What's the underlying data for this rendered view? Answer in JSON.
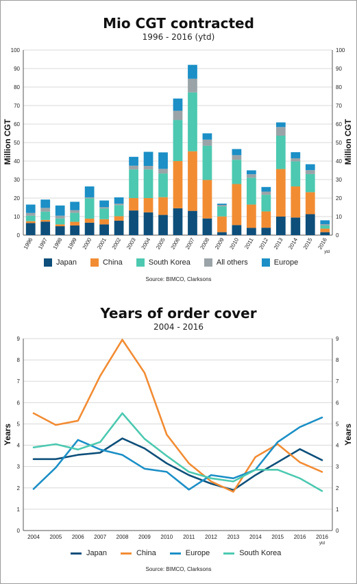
{
  "chart_data": [
    {
      "type": "bar",
      "stacked": true,
      "title": "Mio CGT contracted",
      "subtitle": "1996 - 2016 (ytd)",
      "ylabel": "Million CGT",
      "ylabel_right": "Million CGT",
      "ylim": [
        0,
        100
      ],
      "yticks": [
        0,
        10,
        20,
        30,
        40,
        50,
        60,
        70,
        80,
        90,
        100
      ],
      "categories": [
        "1996",
        "1997",
        "1998",
        "1999",
        "2000",
        "2001",
        "2002",
        "2003",
        "2004",
        "2005",
        "2006",
        "2007",
        "2008",
        "2009",
        "2010",
        "2011",
        "2012",
        "2013",
        "2014",
        "2015",
        "2016"
      ],
      "last_category_note": "ytd",
      "series": [
        {
          "name": "Japan",
          "color": "#0d4f7a",
          "values": [
            6.5,
            7.3,
            4.8,
            5.2,
            6.7,
            5.8,
            7.8,
            13.3,
            12.3,
            10.9,
            14.5,
            13.1,
            9.0,
            1.6,
            5.4,
            3.9,
            4.0,
            10.0,
            9.5,
            11.3,
            1.6
          ]
        },
        {
          "name": "China",
          "color": "#f28c33",
          "values": [
            1.0,
            0.9,
            1.0,
            2.0,
            2.2,
            2.8,
            2.4,
            6.7,
            7.7,
            9.6,
            25.5,
            32.2,
            20.8,
            8.5,
            22.2,
            12.6,
            8.8,
            25.7,
            16.8,
            11.9,
            1.9
          ]
        },
        {
          "name": "South Korea",
          "color": "#4cc9b0",
          "values": [
            3.0,
            4.5,
            3.2,
            4.8,
            11.0,
            5.8,
            6.0,
            15.5,
            15.5,
            12.8,
            22.2,
            31.8,
            18.5,
            5.4,
            13.1,
            14.5,
            9.0,
            18.0,
            13.5,
            9.8,
            1.7
          ]
        },
        {
          "name": "All others",
          "color": "#9aa4a8",
          "values": [
            1.5,
            2.0,
            1.5,
            1.5,
            0.5,
            0.7,
            0.8,
            2.0,
            1.9,
            2.5,
            5.0,
            7.4,
            3.3,
            0.8,
            2.5,
            1.9,
            1.7,
            4.7,
            1.7,
            2.1,
            0.7
          ]
        },
        {
          "name": "Europe",
          "color": "#1b8fc6",
          "values": [
            4.5,
            4.5,
            5.5,
            4.5,
            5.9,
            3.6,
            3.4,
            4.8,
            7.6,
            8.9,
            6.6,
            7.5,
            3.4,
            0.7,
            3.3,
            2.1,
            2.5,
            2.5,
            3.3,
            3.2,
            2.1
          ]
        }
      ],
      "source": "Source: BIMCO, Clarksons"
    },
    {
      "type": "line",
      "title": "Years of order cover",
      "subtitle": "2004 - 2016",
      "ylabel": "Years",
      "ylabel_right": "Years",
      "ylim": [
        0,
        9
      ],
      "yticks": [
        0,
        1,
        2,
        3,
        4,
        5,
        6,
        7,
        8,
        9
      ],
      "x": [
        "2004",
        "2005",
        "2006",
        "2007",
        "2008",
        "2009",
        "2010",
        "2011",
        "2012",
        "2013",
        "2014",
        "2015",
        "2016",
        "2016"
      ],
      "last_x_note": "ytd",
      "series": [
        {
          "name": "Japan",
          "color": "#0d4f7a",
          "values": [
            3.35,
            3.35,
            3.55,
            3.65,
            4.32,
            3.85,
            3.15,
            2.6,
            2.2,
            1.9,
            2.6,
            3.2,
            3.82,
            3.3
          ]
        },
        {
          "name": "China",
          "color": "#f28c33",
          "values": [
            5.5,
            4.95,
            5.15,
            7.25,
            8.95,
            7.4,
            4.5,
            3.15,
            2.3,
            1.82,
            3.45,
            4.05,
            3.2,
            2.75
          ]
        },
        {
          "name": "Europe",
          "color": "#1b8fc6",
          "values": [
            1.95,
            2.95,
            4.25,
            3.8,
            3.55,
            2.9,
            2.75,
            1.92,
            2.6,
            2.45,
            2.85,
            4.15,
            4.85,
            5.3
          ]
        },
        {
          "name": "South Korea",
          "color": "#4cc9b0",
          "values": [
            3.9,
            4.05,
            3.8,
            4.15,
            5.5,
            4.3,
            3.5,
            2.75,
            2.45,
            2.3,
            2.85,
            2.85,
            2.45,
            1.85
          ]
        }
      ],
      "source": "Source: BIMCO, Clarksons"
    }
  ]
}
